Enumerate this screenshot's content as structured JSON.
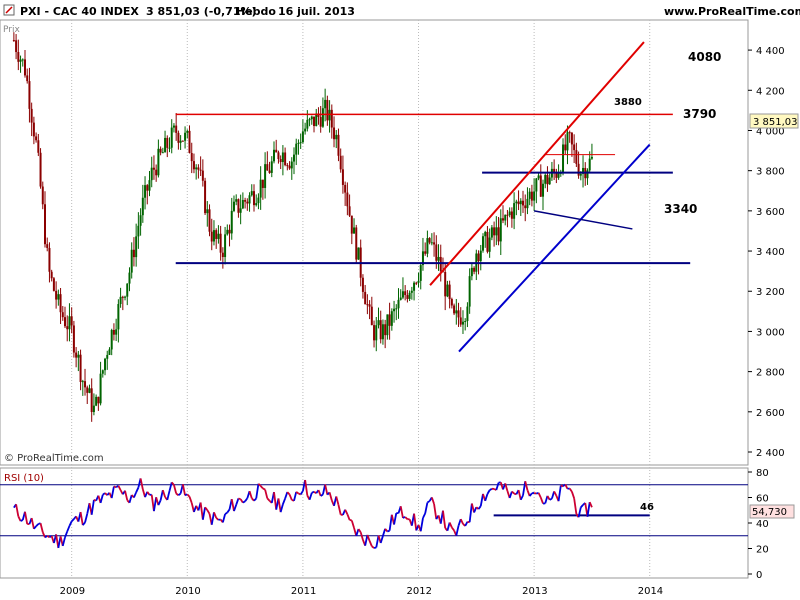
{
  "header": {
    "instrument": "PXI - CAC 40 INDEX",
    "quote": "3 851,03 (-0,71%)",
    "period": "Hebdo",
    "date": "16 juil. 2013",
    "site": "www.ProRealTime.com"
  },
  "price_panel": {
    "label": "Prix",
    "copyright": "© ProRealTime.com",
    "last_value": "3 851,03",
    "levels": [
      {
        "label": "4080",
        "value": 4080,
        "color": "#e00000"
      },
      {
        "label": "3880",
        "value": 3880,
        "color": "#e00000"
      },
      {
        "label": "3790",
        "value": 3790,
        "color": "#000080"
      },
      {
        "label": "3340",
        "value": 3340,
        "color": "#000080"
      }
    ]
  },
  "rsi_panel": {
    "title": "RSI (10)",
    "last_value": "54,730",
    "level_label": "46"
  },
  "chart_data": [
    {
      "type": "candlestick",
      "title": "PXI - CAC 40 INDEX",
      "ylim": [
        2400,
        4500
      ],
      "y_ticks": [
        "2 400",
        "2 600",
        "2 800",
        "3 000",
        "3 200",
        "3 400",
        "3 600",
        "3 800",
        "4 000",
        "4 200",
        "4 400"
      ],
      "x_ticks": [
        "2009",
        "2010",
        "2011",
        "2012",
        "2013",
        "2014"
      ],
      "series": [
        {
          "name": "CAC 40",
          "x": [
            2008.5,
            2008.6,
            2008.7,
            2008.8,
            2008.9,
            2009.0,
            2009.1,
            2009.2,
            2009.3,
            2009.4,
            2009.5,
            2009.6,
            2009.7,
            2009.8,
            2009.9,
            2010.0,
            2010.1,
            2010.2,
            2010.3,
            2010.4,
            2010.5,
            2010.6,
            2010.7,
            2010.8,
            2010.9,
            2011.0,
            2011.1,
            2011.2,
            2011.3,
            2011.4,
            2011.5,
            2011.6,
            2011.7,
            2011.8,
            2011.9,
            2012.0,
            2012.1,
            2012.2,
            2012.3,
            2012.4,
            2012.5,
            2012.6,
            2012.7,
            2012.8,
            2012.9,
            2013.0,
            2013.1,
            2013.2,
            2013.3,
            2013.4,
            2013.5
          ],
          "values": [
            4450,
            4300,
            3900,
            3300,
            3100,
            3000,
            2750,
            2600,
            2900,
            3100,
            3300,
            3600,
            3800,
            3900,
            4000,
            3950,
            3800,
            3500,
            3400,
            3600,
            3650,
            3700,
            3800,
            3900,
            3850,
            4000,
            4050,
            4100,
            3950,
            3600,
            3300,
            3000,
            3000,
            3100,
            3200,
            3300,
            3450,
            3300,
            3050,
            3100,
            3400,
            3450,
            3500,
            3600,
            3650,
            3700,
            3750,
            3800,
            3950,
            3800,
            3851
          ]
        }
      ],
      "lines": {
        "resistance": [
          {
            "x": [
              2009.9,
              2014.2
            ],
            "y": [
              4080,
              4080
            ]
          }
        ],
        "resistance_short": [
          {
            "x": [
              2013.1,
              2013.7
            ],
            "y": [
              3880,
              3880
            ]
          }
        ],
        "support": [
          {
            "x": [
              2009.9,
              2014.35
            ],
            "y": [
              3340,
              3340
            ]
          },
          {
            "x": [
              2012.55,
              2014.2
            ],
            "y": [
              3790,
              3790
            ]
          }
        ],
        "up_trend_red": [
          {
            "x": [
              2012.1,
              2013.95
            ],
            "y": [
              3230,
              4440
            ]
          }
        ],
        "up_trend_blue": [
          {
            "x": [
              2012.35,
              2014.0
            ],
            "y": [
              2900,
              3930
            ]
          }
        ],
        "channel_blue": [
          {
            "x": [
              2013.0,
              2013.85
            ],
            "y": [
              3600,
              3510
            ]
          }
        ]
      }
    },
    {
      "type": "line",
      "title": "RSI (10)",
      "ylim": [
        0,
        80
      ],
      "y_ticks": [
        "0",
        "20",
        "40",
        "60",
        "80"
      ],
      "levels": [
        70,
        30,
        46
      ],
      "series": [
        {
          "name": "RSI (10)",
          "x": [
            2008.5,
            2008.6,
            2008.7,
            2008.8,
            2008.9,
            2009.0,
            2009.1,
            2009.2,
            2009.3,
            2009.4,
            2009.5,
            2009.6,
            2009.7,
            2009.8,
            2009.9,
            2010.0,
            2010.1,
            2010.2,
            2010.3,
            2010.4,
            2010.5,
            2010.6,
            2010.7,
            2010.8,
            2010.9,
            2011.0,
            2011.1,
            2011.2,
            2011.3,
            2011.4,
            2011.5,
            2011.6,
            2011.7,
            2011.8,
            2011.9,
            2012.0,
            2012.1,
            2012.2,
            2012.3,
            2012.4,
            2012.5,
            2012.6,
            2012.7,
            2012.8,
            2012.9,
            2013.0,
            2013.1,
            2013.2,
            2013.3,
            2013.4,
            2013.5
          ],
          "values": [
            50,
            45,
            35,
            30,
            25,
            40,
            45,
            55,
            60,
            65,
            60,
            70,
            55,
            62,
            70,
            60,
            50,
            45,
            40,
            55,
            60,
            65,
            60,
            55,
            60,
            70,
            60,
            65,
            55,
            40,
            30,
            25,
            30,
            45,
            50,
            35,
            55,
            45,
            30,
            40,
            55,
            65,
            70,
            60,
            65,
            70,
            55,
            60,
            70,
            45,
            55
          ]
        }
      ]
    }
  ]
}
